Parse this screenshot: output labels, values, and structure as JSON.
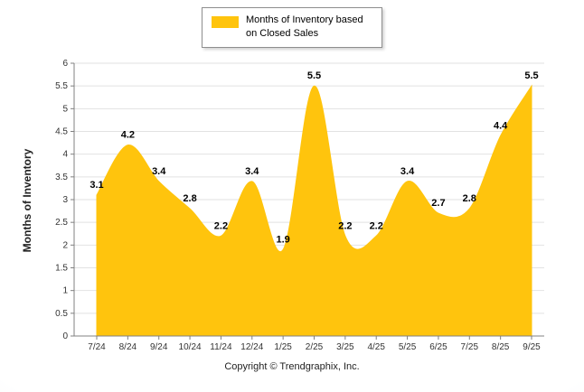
{
  "legend": {
    "label": "Months of Inventory based on Closed Sales"
  },
  "footer": {
    "copyright": "Copyright © Trendgraphix, Inc."
  },
  "chart_data": {
    "type": "area",
    "title": "",
    "categories": [
      "7/24",
      "8/24",
      "9/24",
      "10/24",
      "11/24",
      "12/24",
      "1/25",
      "2/25",
      "3/25",
      "4/25",
      "5/25",
      "6/25",
      "7/25",
      "8/25",
      "9/25"
    ],
    "values": [
      3.1,
      4.2,
      3.4,
      2.8,
      2.2,
      3.4,
      1.9,
      5.5,
      2.2,
      2.2,
      3.4,
      2.7,
      2.8,
      4.4,
      5.5
    ],
    "xlabel": "",
    "ylabel": "Months of Inventory",
    "ylim": [
      0,
      6
    ],
    "ytick_step": 0.5,
    "grid": true,
    "legend_position": "top",
    "fill_color": "#FFC40D",
    "label_color": "#000000",
    "grid_color": "#e2e2e2",
    "axis_color": "#808080",
    "tick_text_color": "#333333"
  }
}
